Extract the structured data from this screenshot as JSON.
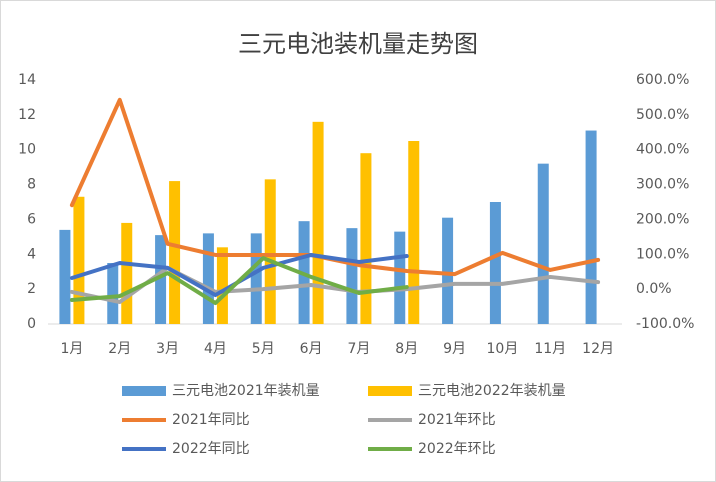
{
  "chart_data": {
    "type": "bar-line",
    "title": "三元电池装机量走势图",
    "categories": [
      "1月",
      "2月",
      "3月",
      "4月",
      "5月",
      "6月",
      "7月",
      "8月",
      "9月",
      "10月",
      "11月",
      "12月"
    ],
    "ylim": [
      0,
      14
    ],
    "yticks": [
      0,
      2,
      4,
      6,
      8,
      10,
      12,
      14
    ],
    "y2lim": [
      -100,
      600
    ],
    "y2ticks": [
      {
        "value": -100,
        "label": "-100.0%"
      },
      {
        "value": 0,
        "label": "0.0%"
      },
      {
        "value": 100,
        "label": "100.0%"
      },
      {
        "value": 200,
        "label": "200.0%"
      },
      {
        "value": 300,
        "label": "300.0%"
      },
      {
        "value": 400,
        "label": "400.0%"
      },
      {
        "value": 500,
        "label": "500.0%"
      },
      {
        "value": 600,
        "label": "600.0%"
      }
    ],
    "series": [
      {
        "name": "三元电池2021年装机量",
        "kind": "bar",
        "color": "#5b9bd5",
        "values": [
          5.4,
          3.5,
          5.1,
          5.2,
          5.2,
          5.9,
          5.5,
          5.3,
          6.1,
          7.0,
          9.2,
          11.1
        ]
      },
      {
        "name": "三元电池2022年装机量",
        "kind": "bar",
        "color": "#ffc000",
        "values": [
          7.3,
          5.8,
          8.2,
          4.4,
          8.3,
          11.6,
          9.8,
          10.5,
          null,
          null,
          null,
          null
        ]
      },
      {
        "name": "2021年同比",
        "kind": "line",
        "axis": "y2",
        "color": "#ed7d31",
        "values": [
          241,
          543,
          130,
          98,
          98,
          98,
          69,
          52,
          43,
          104,
          55,
          84
        ]
      },
      {
        "name": "2021年环比",
        "kind": "line",
        "axis": "y2",
        "color": "#a5a5a5",
        "values": [
          -8,
          -37,
          61,
          -8,
          0,
          12,
          -8,
          0,
          15,
          15,
          35,
          20
        ]
      },
      {
        "name": "2022年同比",
        "kind": "line",
        "axis": "y2",
        "color": "#4472c4",
        "values": [
          32,
          75,
          61,
          -17,
          61,
          98,
          78,
          95,
          null,
          null,
          null,
          null
        ]
      },
      {
        "name": "2022年环比",
        "kind": "line",
        "axis": "y2",
        "color": "#70ad47",
        "values": [
          -31,
          -20,
          46,
          -40,
          89,
          35,
          -11,
          6,
          null,
          null,
          null,
          null
        ]
      }
    ]
  }
}
